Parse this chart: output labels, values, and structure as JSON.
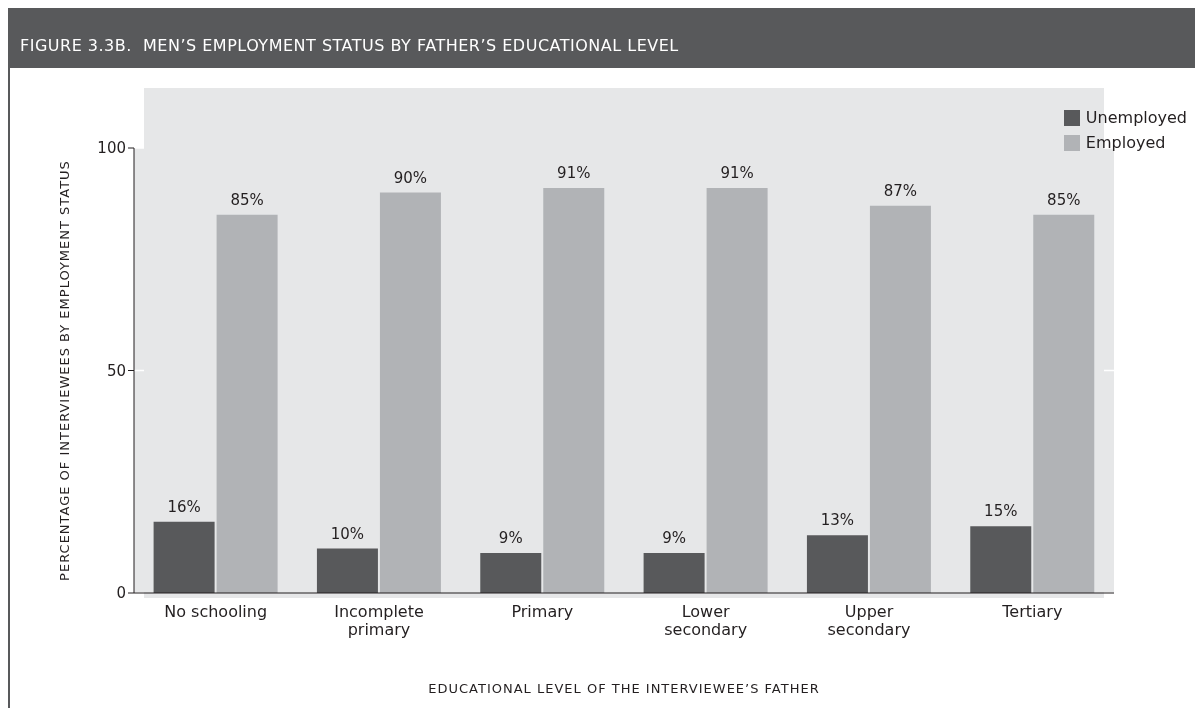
{
  "chart_data": {
    "type": "bar",
    "title": "FIGURE 3.3B.  MEN’S EMPLOYMENT STATUS BY FATHER’S EDUCATIONAL LEVEL",
    "xlabel": "EDUCATIONAL LEVEL OF THE INTERVIEWEE’S FATHER",
    "ylabel": "PERCENTAGE OF INTERVIEWEES BY EMPLOYMENT STATUS",
    "categories": [
      "No schooling",
      "Incomplete primary",
      "Primary",
      "Lower secondary",
      "Upper secondary",
      "Tertiary"
    ],
    "series": [
      {
        "name": "Unemployed",
        "color": "#58595b",
        "values": [
          16,
          10,
          9,
          9,
          13,
          15
        ],
        "value_labels": [
          "16%",
          "10%",
          "9%",
          "9%",
          "13%",
          "15%"
        ]
      },
      {
        "name": "Employed",
        "color": "#b1b3b6",
        "values": [
          85,
          90,
          91,
          91,
          87,
          85
        ],
        "value_labels": [
          "85%",
          "90%",
          "91%",
          "91%",
          "87%",
          "85%"
        ]
      }
    ],
    "ylim": [
      0,
      100
    ],
    "yticks": [
      0,
      50,
      100
    ],
    "grid": "y",
    "legend": "top right"
  }
}
